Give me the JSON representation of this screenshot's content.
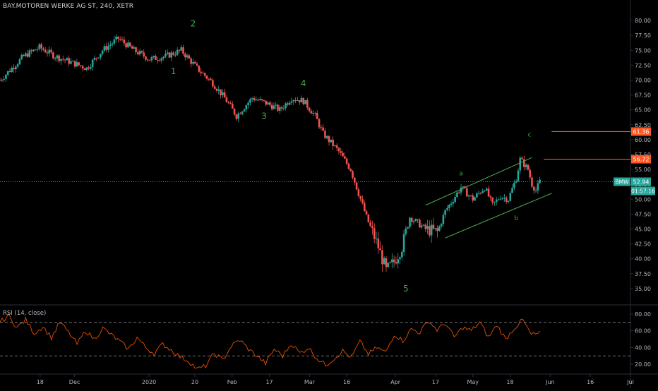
{
  "header": {
    "title": "BAY.MOTOREN WERKE AG ST, 240, XETR"
  },
  "rsi": {
    "title": "RSI (14, close)"
  },
  "colors": {
    "up": "#26a69a",
    "down": "#ef5350",
    "wave": "#3fa34d",
    "channel": "#4caf50",
    "hline": "#ff5722",
    "price_line": "#26a69a",
    "rsi_line": "#e65100",
    "axis_text": "#b2b5be"
  },
  "chart_data": [
    {
      "type": "candlestick",
      "title": "BAY.MOTOREN WERKE AG ST, 240, XETR",
      "ylim": [
        32.5,
        82.5
      ],
      "y_ticks": [
        "80.00",
        "77.50",
        "75.00",
        "72.50",
        "70.00",
        "67.50",
        "65.00",
        "62.50",
        "60.00",
        "57.50",
        "55.00",
        "52.50",
        "50.00",
        "47.50",
        "45.00",
        "42.50",
        "40.00",
        "37.50",
        "35.00"
      ],
      "x_ticks": [
        "18",
        "Dec",
        "2020",
        "20",
        "Feb",
        "17",
        "Mar",
        "16",
        "Apr",
        "17",
        "May",
        "18",
        "Jun",
        "16",
        "Jul"
      ],
      "price_path": [
        [
          0,
          70
        ],
        [
          3,
          74
        ],
        [
          5,
          75.5
        ],
        [
          7,
          74
        ],
        [
          9,
          73
        ],
        [
          11,
          72
        ],
        [
          13,
          75
        ],
        [
          15,
          77
        ],
        [
          17,
          75
        ],
        [
          19,
          73.5
        ],
        [
          21,
          74
        ],
        [
          23,
          75
        ],
        [
          25,
          72
        ],
        [
          27,
          69.5
        ],
        [
          28.5,
          67
        ],
        [
          30,
          64
        ],
        [
          32,
          67
        ],
        [
          34,
          66
        ],
        [
          35.5,
          65
        ],
        [
          37,
          67
        ],
        [
          38.5,
          66.5
        ],
        [
          40,
          64
        ],
        [
          41,
          61
        ],
        [
          42,
          59.5
        ],
        [
          43,
          58
        ],
        [
          44.5,
          55
        ],
        [
          45.5,
          51
        ],
        [
          46.5,
          47
        ],
        [
          48,
          42
        ],
        [
          49,
          38
        ],
        [
          50,
          39.5
        ],
        [
          51,
          42
        ],
        [
          52,
          47
        ],
        [
          54,
          45
        ],
        [
          55.5,
          44.5
        ],
        [
          56.5,
          48
        ],
        [
          57.5,
          50
        ],
        [
          58.5,
          52
        ],
        [
          60,
          50
        ],
        [
          61.5,
          52
        ],
        [
          62.5,
          49
        ],
        [
          63.5,
          50.5
        ],
        [
          64.5,
          50
        ],
        [
          65.5,
          53.5
        ],
        [
          66,
          56.7
        ],
        [
          67,
          55
        ],
        [
          67.5,
          52.5
        ],
        [
          68,
          51.5
        ],
        [
          68.5,
          52.94
        ]
      ],
      "last_price": 52.94,
      "countdown": "01:57:16",
      "symbol_label": "BMW",
      "horizontal_levels": [
        61.36,
        56.72
      ],
      "wave_labels": [
        {
          "text": "1",
          "x": 22,
          "y": 71
        },
        {
          "text": "2",
          "x": 24.5,
          "y": 79
        },
        {
          "text": "3",
          "x": 33.5,
          "y": 63.5
        },
        {
          "text": "4",
          "x": 38.5,
          "y": 69
        },
        {
          "text": "5",
          "x": 51.5,
          "y": 34.5
        },
        {
          "text": "a",
          "x": 58.5,
          "y": 54
        },
        {
          "text": "b",
          "x": 65.5,
          "y": 46.5
        },
        {
          "text": "c",
          "x": 67.2,
          "y": 60.5
        }
      ],
      "channel": {
        "upper": [
          [
            54,
            49
          ],
          [
            67.5,
            57
          ]
        ],
        "lower": [
          [
            56.5,
            43.5
          ],
          [
            70,
            51
          ]
        ]
      }
    },
    {
      "type": "line",
      "title": "RSI (14, close)",
      "ylim": [
        10,
        90
      ],
      "y_ticks": [
        "80.00",
        "60.00",
        "40.00",
        "20.00"
      ],
      "levels": [
        70,
        30
      ],
      "series": [
        {
          "values": [
            70,
            78,
            64,
            73,
            57,
            65,
            52,
            70,
            58,
            44,
            60,
            50,
            63,
            55,
            47,
            38,
            52,
            40,
            33,
            44,
            37,
            29,
            24,
            14,
            18,
            33,
            25,
            42,
            49,
            38,
            30,
            21,
            38,
            30,
            45,
            33,
            40,
            27,
            19,
            27,
            36,
            28,
            47,
            32,
            40,
            34,
            56,
            48,
            62,
            58,
            72,
            61,
            69,
            52,
            64,
            60,
            70,
            52,
            67,
            50,
            63,
            73,
            55,
            57
          ]
        }
      ]
    }
  ]
}
